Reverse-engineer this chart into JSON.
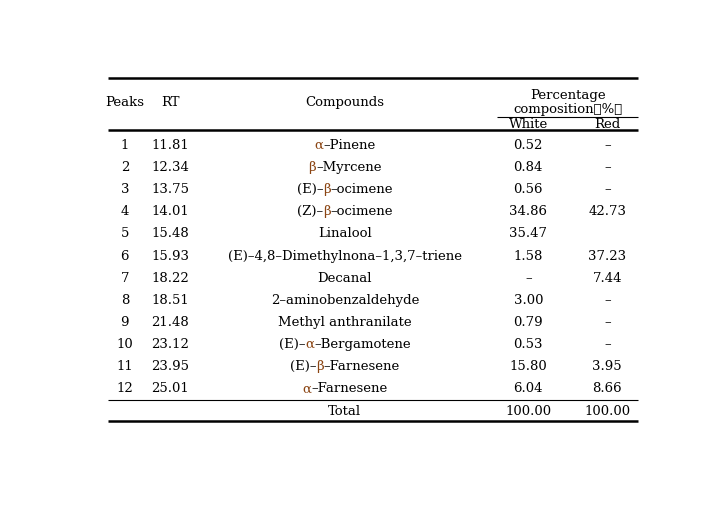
{
  "rows": [
    {
      "peak": "1",
      "rt": "11.81",
      "compound": "α–Pinene",
      "parts": [
        [
          "α",
          "#8B4513"
        ],
        [
          "–Pinene",
          "black"
        ]
      ],
      "white": "0.52",
      "red": "–"
    },
    {
      "peak": "2",
      "rt": "12.34",
      "compound": "β–Myrcene",
      "parts": [
        [
          "β",
          "#8B4513"
        ],
        [
          "–Myrcene",
          "black"
        ]
      ],
      "white": "0.84",
      "red": "–"
    },
    {
      "peak": "3",
      "rt": "13.75",
      "compound": "(E)–β–ocimene",
      "parts": [
        [
          "(E)–",
          "black"
        ],
        [
          "β",
          "#8B4513"
        ],
        [
          "–ocimene",
          "black"
        ]
      ],
      "white": "0.56",
      "red": "–"
    },
    {
      "peak": "4",
      "rt": "14.01",
      "compound": "(Z)–β–ocimene",
      "parts": [
        [
          "(Z)–",
          "black"
        ],
        [
          "β",
          "#8B4513"
        ],
        [
          "–ocimene",
          "black"
        ]
      ],
      "white": "34.86",
      "red": "42.73"
    },
    {
      "peak": "5",
      "rt": "15.48",
      "compound": "Linalool",
      "parts": [
        [
          "Linalool",
          "black"
        ]
      ],
      "white": "35.47",
      "red": ""
    },
    {
      "peak": "6",
      "rt": "15.93",
      "compound": "(E)–4,8–Dimethylnona–1,3,7–triene",
      "parts": [
        [
          "(E)–4,8–Dimethylnona–1,3,7–triene",
          "black"
        ]
      ],
      "white": "1.58",
      "red": "37.23"
    },
    {
      "peak": "7",
      "rt": "18.22",
      "compound": "Decanal",
      "parts": [
        [
          "Decanal",
          "black"
        ]
      ],
      "white": "–",
      "red": "7.44"
    },
    {
      "peak": "8",
      "rt": "18.51",
      "compound": "2–aminobenzaldehyde",
      "parts": [
        [
          "2–aminobenzaldehyde",
          "black"
        ]
      ],
      "white": "3.00",
      "red": "–"
    },
    {
      "peak": "9",
      "rt": "21.48",
      "compound": "Methyl anthranilate",
      "parts": [
        [
          "Methyl anthranilate",
          "black"
        ]
      ],
      "white": "0.79",
      "red": "–"
    },
    {
      "peak": "10",
      "rt": "23.12",
      "compound": "(E)–α–Bergamotene",
      "parts": [
        [
          "(E)–",
          "black"
        ],
        [
          "α",
          "#8B4513"
        ],
        [
          "–Bergamotene",
          "black"
        ]
      ],
      "white": "0.53",
      "red": "–"
    },
    {
      "peak": "11",
      "rt": "23.95",
      "compound": "(E)–β–Farnesene",
      "parts": [
        [
          "(E)–",
          "black"
        ],
        [
          "β",
          "#8B4513"
        ],
        [
          "–Farnesene",
          "black"
        ]
      ],
      "white": "15.80",
      "red": "3.95"
    },
    {
      "peak": "12",
      "rt": "25.01",
      "compound": "α–Farnesene",
      "parts": [
        [
          "α",
          "#8B4513"
        ],
        [
          "–Farnesene",
          "black"
        ]
      ],
      "white": "6.04",
      "red": "8.66"
    }
  ],
  "total_white": "100.00",
  "total_red": "100.00",
  "bg_color": "#ffffff",
  "font_size": 9.5,
  "figsize": [
    7.28,
    5.14
  ],
  "dpi": 100
}
